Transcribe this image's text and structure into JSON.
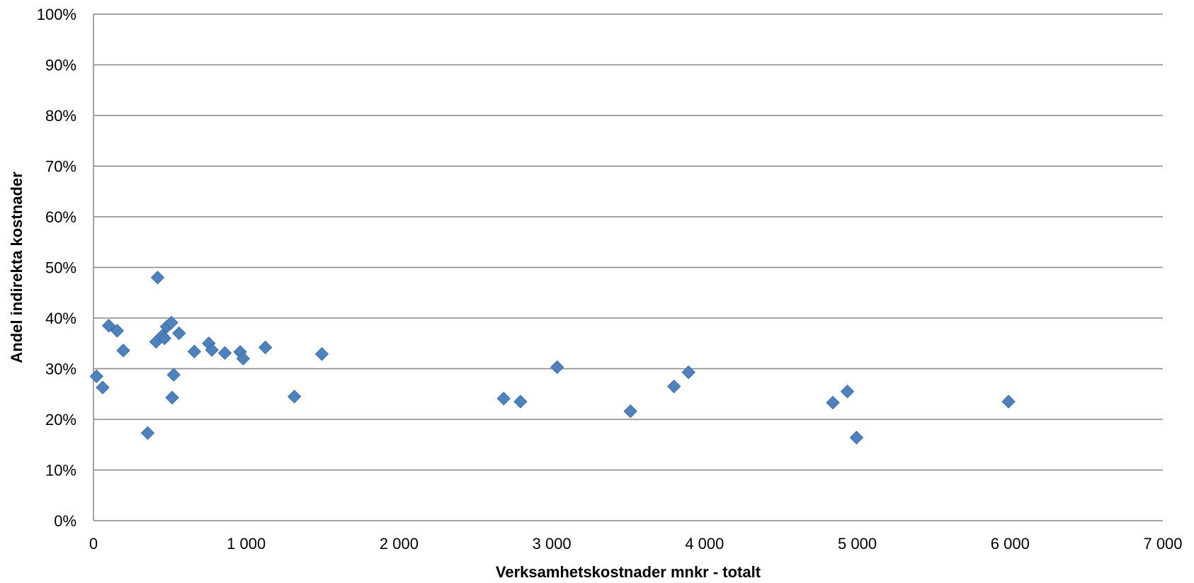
{
  "chart_data": {
    "type": "scatter",
    "title": "",
    "xlabel": "Verksamhetskostnader mnkr - totalt",
    "ylabel": "Andel indirekta kostnader",
    "xlim": [
      0,
      7000
    ],
    "ylim": [
      0,
      100
    ],
    "x_ticks": [
      0,
      1000,
      2000,
      3000,
      4000,
      5000,
      6000,
      7000
    ],
    "x_tick_labels": [
      "0",
      "1 000",
      "2 000",
      "3 000",
      "4 000",
      "5 000",
      "6 000",
      "7 000"
    ],
    "y_ticks": [
      0,
      10,
      20,
      30,
      40,
      50,
      60,
      70,
      80,
      90,
      100
    ],
    "y_tick_labels": [
      "0%",
      "10%",
      "20%",
      "30%",
      "40%",
      "50%",
      "60%",
      "70%",
      "80%",
      "90%",
      "100%"
    ],
    "grid": "horizontal",
    "legend": "none",
    "marker": "diamond",
    "color": "#4f81bd",
    "series": [
      {
        "points": [
          [
            20,
            28.5
          ],
          [
            60,
            26.3
          ],
          [
            100,
            38.5
          ],
          [
            155,
            37.5
          ],
          [
            195,
            33.6
          ],
          [
            355,
            17.3
          ],
          [
            410,
            35.3
          ],
          [
            420,
            48.0
          ],
          [
            450,
            36.5
          ],
          [
            465,
            36.0
          ],
          [
            480,
            38.3
          ],
          [
            510,
            39.1
          ],
          [
            515,
            24.3
          ],
          [
            525,
            28.8
          ],
          [
            560,
            37.0
          ],
          [
            660,
            33.4
          ],
          [
            755,
            35.0
          ],
          [
            775,
            33.7
          ],
          [
            860,
            33.1
          ],
          [
            960,
            33.3
          ],
          [
            980,
            32.0
          ],
          [
            1125,
            34.2
          ],
          [
            1315,
            24.5
          ],
          [
            1495,
            32.9
          ],
          [
            2685,
            24.1
          ],
          [
            2795,
            23.5
          ],
          [
            3035,
            30.3
          ],
          [
            3515,
            21.6
          ],
          [
            3800,
            26.5
          ],
          [
            3895,
            29.3
          ],
          [
            4840,
            23.3
          ],
          [
            4935,
            25.5
          ],
          [
            4995,
            16.4
          ],
          [
            5990,
            23.5
          ]
        ]
      }
    ]
  }
}
